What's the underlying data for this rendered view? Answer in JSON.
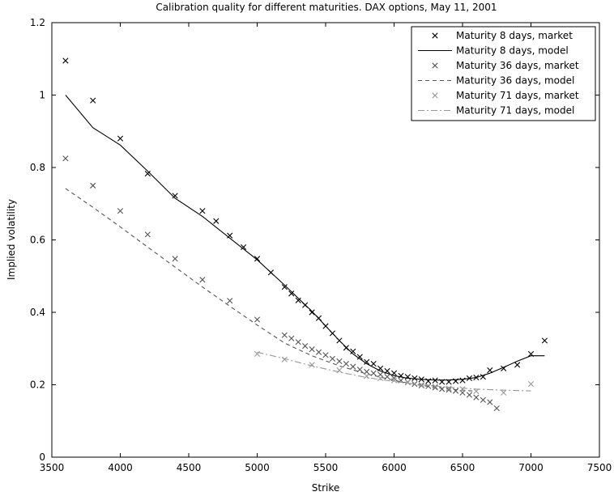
{
  "chart_data": {
    "type": "line",
    "title": "Calibration quality for different maturities.  DAX options, May 11, 2001",
    "xlabel": "Strike",
    "ylabel": "Implied volatility",
    "xlim": [
      3500,
      7500
    ],
    "ylim": [
      0,
      1.2
    ],
    "xticks": [
      3500,
      4000,
      4500,
      5000,
      5500,
      6000,
      6500,
      7000,
      7500
    ],
    "yticks": [
      0,
      0.2,
      0.4,
      0.6,
      0.8,
      1,
      1.2
    ],
    "xtick_labels": [
      "3500",
      "4000",
      "4500",
      "5000",
      "5500",
      "6000",
      "6500",
      "7000",
      "7500"
    ],
    "ytick_labels": [
      "0",
      "0.2",
      "0.4",
      "0.6",
      "0.8",
      "1",
      "1.2"
    ],
    "grid": false,
    "legend_position": "top-right",
    "series": [
      {
        "name": "Maturity 8 days, market",
        "kind": "marker",
        "color": "#000000",
        "x": [
          3600,
          3800,
          4000,
          4200,
          4400,
          4600,
          4700,
          4800,
          4900,
          5000,
          5100,
          5200,
          5250,
          5300,
          5350,
          5400,
          5450,
          5500,
          5550,
          5600,
          5650,
          5700,
          5750,
          5800,
          5850,
          5900,
          5950,
          6000,
          6050,
          6100,
          6150,
          6200,
          6250,
          6300,
          6350,
          6400,
          6450,
          6500,
          6550,
          6600,
          6650,
          6700,
          6800,
          6900,
          7000,
          7100
        ],
        "y": [
          1.095,
          0.985,
          0.88,
          0.783,
          0.722,
          0.68,
          0.652,
          0.612,
          0.58,
          0.548,
          0.51,
          0.47,
          0.452,
          0.433,
          0.42,
          0.4,
          0.384,
          0.362,
          0.342,
          0.322,
          0.302,
          0.292,
          0.277,
          0.263,
          0.258,
          0.245,
          0.238,
          0.232,
          0.225,
          0.222,
          0.218,
          0.215,
          0.21,
          0.212,
          0.208,
          0.208,
          0.21,
          0.212,
          0.218,
          0.22,
          0.222,
          0.24,
          0.245,
          0.255,
          0.285,
          0.322
        ]
      },
      {
        "name": "Maturity 8 days, model",
        "kind": "line",
        "color": "#000000",
        "dash": "",
        "x": [
          3600,
          3800,
          4000,
          4200,
          4400,
          4600,
          4800,
          5000,
          5200,
          5400,
          5600,
          5700,
          5800,
          5900,
          6000,
          6100,
          6200,
          6300,
          6400,
          6500,
          6600,
          6700,
          6800,
          6900,
          7000,
          7100
        ],
        "y": [
          1.0,
          0.91,
          0.862,
          0.79,
          0.715,
          0.665,
          0.605,
          0.545,
          0.475,
          0.403,
          0.322,
          0.285,
          0.258,
          0.238,
          0.225,
          0.218,
          0.215,
          0.213,
          0.213,
          0.215,
          0.22,
          0.232,
          0.248,
          0.265,
          0.28,
          0.28
        ]
      },
      {
        "name": "Maturity 36 days, market",
        "kind": "marker",
        "color": "#555555",
        "x": [
          3600,
          3800,
          4000,
          4200,
          4400,
          4600,
          4800,
          5000,
          5200,
          5250,
          5300,
          5350,
          5400,
          5450,
          5500,
          5550,
          5600,
          5650,
          5700,
          5750,
          5800,
          5850,
          5900,
          5950,
          6000,
          6050,
          6100,
          6150,
          6200,
          6250,
          6300,
          6350,
          6400,
          6450,
          6500,
          6550,
          6600,
          6650,
          6700,
          6750
        ],
        "y": [
          0.825,
          0.75,
          0.68,
          0.615,
          0.548,
          0.49,
          0.432,
          0.38,
          0.337,
          0.328,
          0.318,
          0.307,
          0.298,
          0.29,
          0.282,
          0.272,
          0.265,
          0.258,
          0.25,
          0.242,
          0.236,
          0.232,
          0.228,
          0.222,
          0.218,
          0.212,
          0.207,
          0.202,
          0.198,
          0.196,
          0.192,
          0.188,
          0.186,
          0.183,
          0.178,
          0.172,
          0.165,
          0.158,
          0.152,
          0.135
        ]
      },
      {
        "name": "Maturity 36 days, model",
        "kind": "line",
        "color": "#555555",
        "dash": "5,4",
        "x": [
          3600,
          3800,
          4000,
          4200,
          4400,
          4600,
          4800,
          5000,
          5200,
          5400,
          5600,
          5800,
          6000,
          6200,
          6400,
          6500,
          6600
        ],
        "y": [
          0.742,
          0.69,
          0.636,
          0.58,
          0.525,
          0.47,
          0.417,
          0.365,
          0.315,
          0.28,
          0.252,
          0.23,
          0.212,
          0.198,
          0.188,
          0.185,
          0.182
        ]
      },
      {
        "name": "Maturity 71 days, market",
        "kind": "marker",
        "color": "#999999",
        "x": [
          5000,
          5200,
          5400,
          5600,
          5800,
          5900,
          6000,
          6100,
          6200,
          6300,
          6400,
          6500,
          6600,
          6800,
          7000
        ],
        "y": [
          0.285,
          0.27,
          0.255,
          0.24,
          0.224,
          0.218,
          0.212,
          0.206,
          0.2,
          0.195,
          0.19,
          0.188,
          0.182,
          0.178,
          0.202
        ]
      },
      {
        "name": "Maturity 71 days, model",
        "kind": "line",
        "color": "#999999",
        "dash": "8,3,2,3",
        "x": [
          5000,
          5200,
          5400,
          5600,
          5800,
          6000,
          6200,
          6400,
          6600,
          6800,
          7000
        ],
        "y": [
          0.29,
          0.272,
          0.252,
          0.235,
          0.22,
          0.209,
          0.2,
          0.193,
          0.188,
          0.185,
          0.183
        ]
      }
    ]
  }
}
